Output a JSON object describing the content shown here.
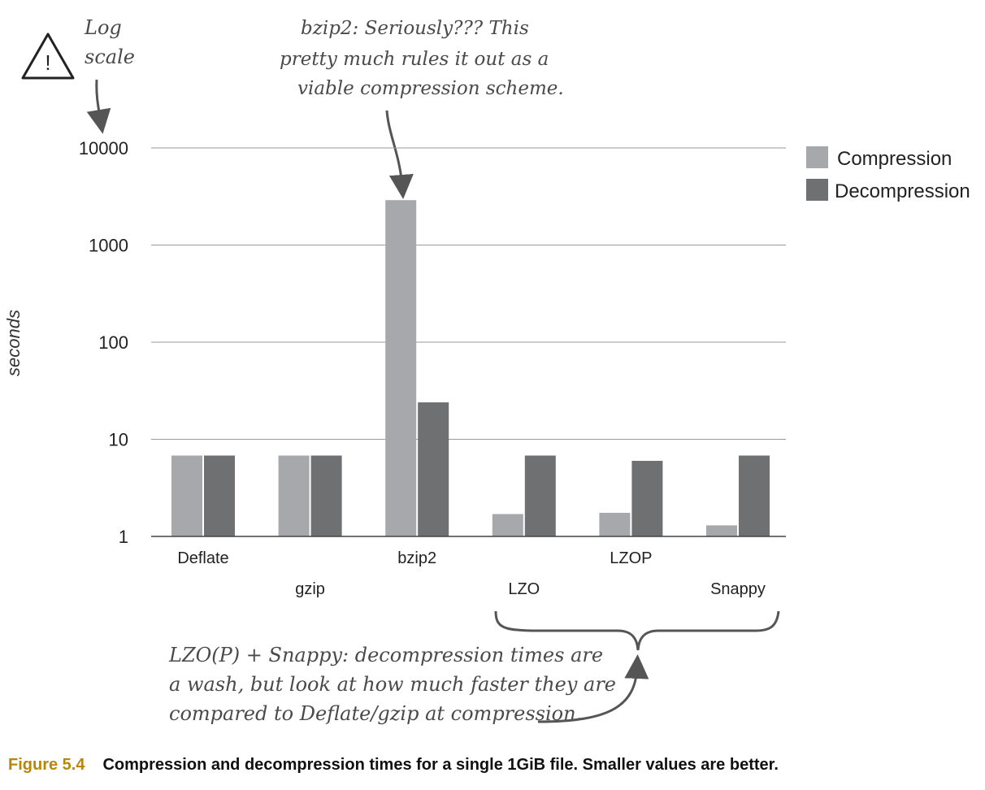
{
  "chart_data": {
    "type": "bar",
    "scale": "log",
    "ylabel": "seconds",
    "y_ticks": [
      "10000",
      "1000",
      "100",
      "10",
      "1"
    ],
    "ylim": [
      1,
      10000
    ],
    "grid": true,
    "legend_position": "top-right",
    "categories": [
      "Deflate",
      "gzip",
      "bzip2",
      "LZO",
      "LZOP",
      "Snappy"
    ],
    "series": [
      {
        "name": "Compression",
        "color": "#a7a8ab",
        "values": [
          6.8,
          6.8,
          2900,
          1.7,
          1.75,
          1.3
        ]
      },
      {
        "name": "Decompression",
        "color": "#6f7072",
        "values": [
          6.8,
          6.8,
          24,
          6.8,
          6.0,
          6.8
        ]
      }
    ],
    "annotations": {
      "log_scale": [
        "Log",
        "scale"
      ],
      "warning_symbol": "!",
      "bzip2_note": [
        "bzip2: Seriously??? This",
        "pretty much rules it out as a",
        "viable compression scheme."
      ],
      "lzo_note": [
        "LZO(P) + Snappy:  decompression times are",
        "a wash, but look at how much faster they are",
        "compared to Deflate/gzip at compression."
      ]
    }
  },
  "caption": {
    "label": "Figure 5.4",
    "text": "Compression and decompression times for a single 1GiB file. Smaller values are better."
  }
}
